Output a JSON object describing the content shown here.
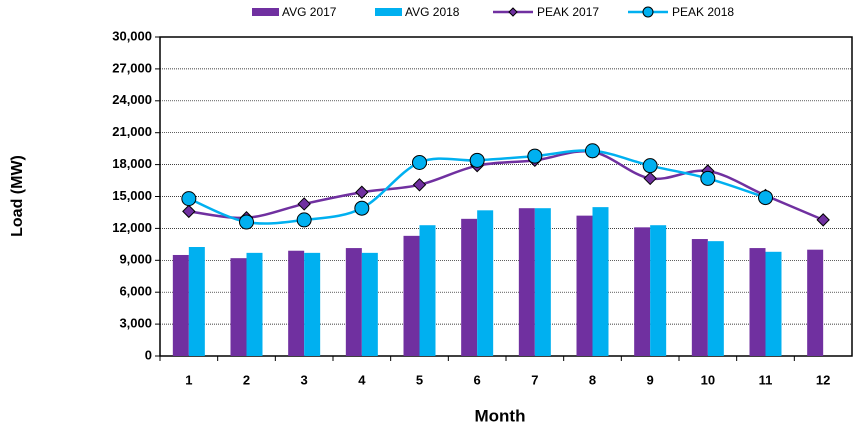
{
  "chart_data": {
    "type": "bar",
    "x_label": "Month",
    "y_label": "Load (MW)",
    "categories": [
      1,
      2,
      3,
      4,
      5,
      6,
      7,
      8,
      9,
      10,
      11,
      12
    ],
    "ylim": [
      0,
      30000
    ],
    "yticks": [
      0,
      {
        "value": 3000,
        "label": "3,000"
      },
      {
        "value": 6000,
        "label": "6,000"
      },
      {
        "value": 9000,
        "label": "9,000"
      },
      {
        "value": 12000,
        "label": "12,000"
      },
      {
        "value": 15000,
        "label": "15,000"
      },
      {
        "value": 18000,
        "label": "18,000"
      },
      {
        "value": 21000,
        "label": "21,000"
      },
      {
        "value": 24000,
        "label": "24,000"
      },
      {
        "value": 27000,
        "label": "27,000"
      },
      {
        "value": 30000,
        "label": "30,000"
      }
    ],
    "grid": true,
    "legend": "top",
    "series": [
      {
        "name": "AVG 2017",
        "type": "bar",
        "color": "#7030a0",
        "values": [
          9500,
          9200,
          9900,
          10150,
          11300,
          12900,
          13900,
          13200,
          12100,
          11000,
          10150,
          10000
        ]
      },
      {
        "name": "AVG 2018",
        "type": "bar",
        "color": "#00b0f0",
        "values": [
          10250,
          9700,
          9700,
          9700,
          12300,
          13700,
          13900,
          14000,
          12300,
          10800,
          9800,
          null
        ]
      },
      {
        "name": "PEAK 2017",
        "type": "line",
        "marker": "diamond",
        "color": "#7030a0",
        "values": [
          13600,
          13000,
          14300,
          15400,
          16100,
          17900,
          18400,
          19200,
          16700,
          17400,
          15100,
          12800
        ]
      },
      {
        "name": "PEAK 2018",
        "type": "line",
        "marker": "circle",
        "color": "#00b0f0",
        "values": [
          14800,
          12600,
          12800,
          13900,
          18200,
          18400,
          18800,
          19300,
          17900,
          16700,
          14900,
          null
        ]
      }
    ]
  }
}
